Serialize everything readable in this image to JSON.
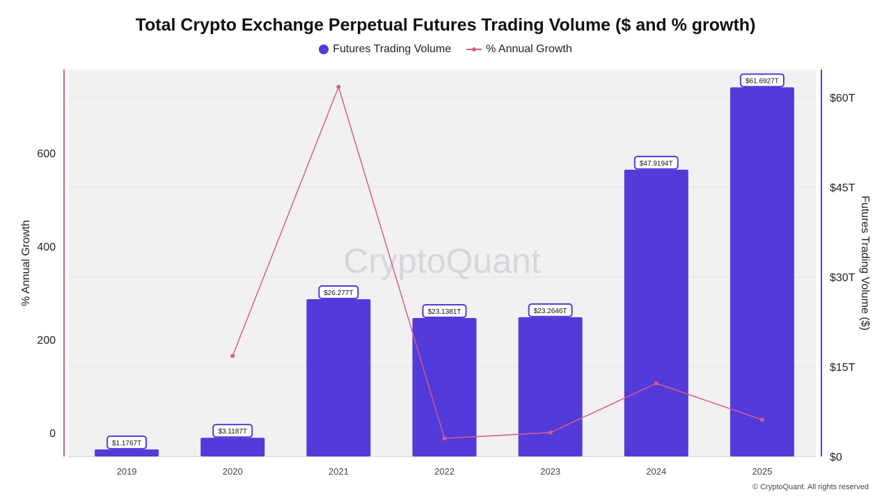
{
  "chart_data": {
    "type": "bar+line",
    "title": "Total Crypto Exchange Perpetual Futures Trading Volume ($ and % growth)",
    "categories": [
      "2019",
      "2020",
      "2021",
      "2022",
      "2023",
      "2024",
      "2025"
    ],
    "series": [
      {
        "name": "Futures Trading Volume",
        "type": "bar",
        "axis": "right",
        "unit": "T",
        "values": [
          1.1767,
          3.1187,
          26.277,
          23.1381,
          23.2646,
          47.9194,
          61.6927
        ],
        "labels": [
          "$1.1767T",
          "$3.1187T",
          "$26.277T",
          "$23.1381T",
          "$23.2646T",
          "$47.9194T",
          "$61.6927T"
        ],
        "color": "#523bd9"
      },
      {
        "name": "% Annual Growth",
        "type": "line",
        "axis": "left",
        "values": [
          null,
          165,
          742,
          -12,
          0.5,
          106,
          28
        ],
        "color": "#d85a8f"
      }
    ],
    "left_axis": {
      "label": "% Annual Growth",
      "ticks": [
        "0",
        "200",
        "400",
        "600"
      ],
      "tick_values": [
        0,
        200,
        400,
        600
      ]
    },
    "right_axis": {
      "label": "Futures Trading Volume ($)",
      "ticks": [
        "$0",
        "$15T",
        "$30T",
        "$45T",
        "$60T"
      ],
      "tick_values": [
        0,
        15,
        30,
        45,
        60
      ]
    },
    "watermark": "CryptoQuant",
    "legend_placement": "top-center"
  },
  "footer": "© CryptoQuant. All rights reserved"
}
